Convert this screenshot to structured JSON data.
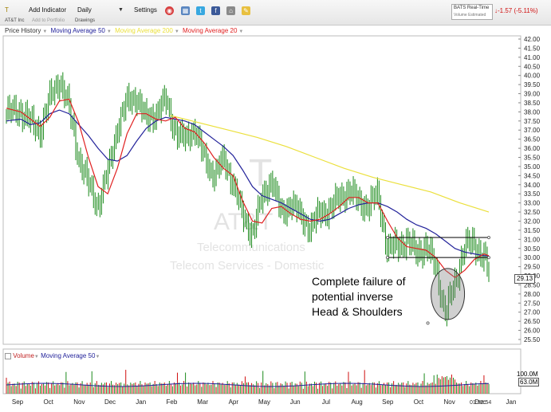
{
  "toolbar": {
    "symbol": "T",
    "add_indicator": "Add Indicator",
    "interval": "Daily",
    "settings": "Settings",
    "company": "AT&T Inc",
    "add_portfolio": "Add to Portfolio",
    "drawings": "Drawings",
    "realtime_label": "BATS Real-Time",
    "volume_estimated": "Volume Estimated",
    "change": "-1.57 (-5.11%)",
    "icons": [
      "alert-icon",
      "grid-icon",
      "twitter-icon",
      "facebook-icon",
      "home-icon",
      "pencil-icon"
    ]
  },
  "legend": {
    "price_history": "Price History",
    "ma50": "Moving Average 50",
    "ma200": "Moving Average 200",
    "ma20": "Moving Average 20"
  },
  "overlay": {
    "symbol": "T",
    "name": "AT&T",
    "sector": "Telecommunications",
    "industry": "Telecom Services - Domestic"
  },
  "annotation": {
    "line1": "Complete failure of",
    "line2": "potential inverse",
    "line3": "Head & Shoulders"
  },
  "current_price": "29.13",
  "volume": {
    "label": "Volume",
    "ma_label": "Moving Average 50",
    "axis_top": "100.0M",
    "axis_mid": "63.0M"
  },
  "clock": "01:52:54",
  "colors": {
    "ma50": "#22229a",
    "ma200": "#ebe03c",
    "ma20": "#e02020",
    "price": "#1b8a1b"
  },
  "chart_data": {
    "type": "candlestick",
    "ylim": [
      25.5,
      42.0
    ],
    "y_ticks": [
      "42.00",
      "41.50",
      "41.00",
      "40.50",
      "40.00",
      "39.50",
      "39.00",
      "38.50",
      "38.00",
      "37.50",
      "37.00",
      "36.50",
      "36.00",
      "35.50",
      "35.00",
      "34.50",
      "34.00",
      "33.50",
      "33.00",
      "32.50",
      "32.00",
      "31.50",
      "31.00",
      "30.50",
      "30.00",
      "29.50",
      "29.00",
      "28.50",
      "28.00",
      "27.50",
      "27.00",
      "26.50",
      "26.00",
      "25.50"
    ],
    "x_ticks": [
      "Sep",
      "Oct",
      "Nov",
      "Dec",
      "Jan",
      "Feb",
      "Mar",
      "Apr",
      "May",
      "Jun",
      "Jul",
      "Aug",
      "Sep",
      "Oct",
      "Nov",
      "Dec",
      "Jan"
    ],
    "price_path": [
      [
        0,
        37.9
      ],
      [
        3,
        38.1
      ],
      [
        5,
        37.4
      ],
      [
        7,
        37.0
      ],
      [
        9,
        38.7
      ],
      [
        11,
        39.8
      ],
      [
        13,
        38.2
      ],
      [
        15,
        35.5
      ],
      [
        17,
        34.0
      ],
      [
        19,
        32.9
      ],
      [
        21,
        34.6
      ],
      [
        23,
        37.2
      ],
      [
        25,
        38.5
      ],
      [
        27,
        38.9
      ],
      [
        29,
        37.5
      ],
      [
        31,
        38.0
      ],
      [
        33,
        38.6
      ],
      [
        35,
        37.0
      ],
      [
        37,
        36.4
      ],
      [
        39,
        37.2
      ],
      [
        41,
        35.4
      ],
      [
        43,
        34.6
      ],
      [
        45,
        35.3
      ],
      [
        47,
        34.2
      ],
      [
        49,
        32.2
      ],
      [
        51,
        31.4
      ],
      [
        53,
        33.2
      ],
      [
        55,
        34.4
      ],
      [
        57,
        32.3
      ],
      [
        59,
        33.1
      ],
      [
        61,
        32.2
      ],
      [
        63,
        31.7
      ],
      [
        65,
        32.4
      ],
      [
        67,
        32.7
      ],
      [
        69,
        33.2
      ],
      [
        71,
        33.8
      ],
      [
        73,
        33.0
      ],
      [
        75,
        32.9
      ],
      [
        77,
        33.4
      ],
      [
        79,
        30.5
      ],
      [
        81,
        30.6
      ],
      [
        83,
        31.0
      ],
      [
        85,
        30.2
      ],
      [
        87,
        30.7
      ],
      [
        89,
        29.4
      ],
      [
        91,
        27.0
      ],
      [
        93,
        28.5
      ],
      [
        95,
        30.8
      ],
      [
        97,
        30.6
      ],
      [
        99,
        30.2
      ],
      [
        100,
        29.13
      ]
    ],
    "ma20": [
      [
        0,
        38.2
      ],
      [
        3,
        38.0
      ],
      [
        5,
        37.6
      ],
      [
        7,
        37.2
      ],
      [
        9,
        37.7
      ],
      [
        11,
        38.6
      ],
      [
        13,
        38.7
      ],
      [
        15,
        37.4
      ],
      [
        17,
        35.5
      ],
      [
        19,
        33.9
      ],
      [
        21,
        33.5
      ],
      [
        23,
        34.9
      ],
      [
        25,
        36.8
      ],
      [
        27,
        37.9
      ],
      [
        29,
        37.9
      ],
      [
        31,
        37.6
      ],
      [
        33,
        37.5
      ],
      [
        35,
        37.7
      ],
      [
        37,
        37.1
      ],
      [
        39,
        36.9
      ],
      [
        41,
        36.3
      ],
      [
        43,
        35.5
      ],
      [
        45,
        34.9
      ],
      [
        47,
        34.5
      ],
      [
        49,
        33.1
      ],
      [
        51,
        32.0
      ],
      [
        53,
        31.9
      ],
      [
        55,
        32.7
      ],
      [
        57,
        32.8
      ],
      [
        59,
        32.4
      ],
      [
        61,
        32.1
      ],
      [
        63,
        32.0
      ],
      [
        65,
        32.1
      ],
      [
        67,
        32.4
      ],
      [
        69,
        32.8
      ],
      [
        71,
        33.3
      ],
      [
        73,
        33.3
      ],
      [
        75,
        33.0
      ],
      [
        77,
        33.0
      ],
      [
        79,
        32.0
      ],
      [
        81,
        31.1
      ],
      [
        83,
        30.6
      ],
      [
        85,
        30.5
      ],
      [
        87,
        30.4
      ],
      [
        89,
        30.0
      ],
      [
        91,
        29.3
      ],
      [
        93,
        28.9
      ],
      [
        95,
        29.3
      ],
      [
        97,
        29.9
      ],
      [
        99,
        30.2
      ],
      [
        100,
        30.1
      ]
    ],
    "ma50": [
      [
        0,
        37.5
      ],
      [
        3,
        37.6
      ],
      [
        5,
        37.3
      ],
      [
        7,
        37.4
      ],
      [
        9,
        37.9
      ],
      [
        11,
        38.1
      ],
      [
        13,
        37.9
      ],
      [
        15,
        37.3
      ],
      [
        17,
        36.7
      ],
      [
        19,
        36.0
      ],
      [
        21,
        35.4
      ],
      [
        23,
        35.3
      ],
      [
        25,
        35.6
      ],
      [
        27,
        36.4
      ],
      [
        29,
        37.1
      ],
      [
        31,
        37.5
      ],
      [
        33,
        37.7
      ],
      [
        35,
        37.6
      ],
      [
        37,
        37.5
      ],
      [
        39,
        37.3
      ],
      [
        41,
        36.9
      ],
      [
        43,
        36.5
      ],
      [
        45,
        36.1
      ],
      [
        47,
        35.6
      ],
      [
        49,
        34.8
      ],
      [
        51,
        33.9
      ],
      [
        53,
        33.4
      ],
      [
        55,
        33.2
      ],
      [
        57,
        33.0
      ],
      [
        59,
        32.7
      ],
      [
        61,
        32.4
      ],
      [
        63,
        32.1
      ],
      [
        65,
        32.0
      ],
      [
        67,
        32.1
      ],
      [
        69,
        32.4
      ],
      [
        71,
        32.7
      ],
      [
        73,
        32.9
      ],
      [
        75,
        33.0
      ],
      [
        77,
        33.0
      ],
      [
        79,
        32.8
      ],
      [
        81,
        32.5
      ],
      [
        83,
        32.1
      ],
      [
        85,
        31.8
      ],
      [
        87,
        31.6
      ],
      [
        89,
        31.3
      ],
      [
        91,
        30.9
      ],
      [
        93,
        30.5
      ],
      [
        95,
        30.3
      ],
      [
        97,
        30.2
      ],
      [
        99,
        30.1
      ],
      [
        100,
        30.1
      ]
    ],
    "ma200": [
      [
        34,
        37.8
      ],
      [
        40,
        37.4
      ],
      [
        46,
        37.0
      ],
      [
        52,
        36.6
      ],
      [
        58,
        36.1
      ],
      [
        64,
        35.5
      ],
      [
        70,
        34.9
      ],
      [
        76,
        34.4
      ],
      [
        82,
        34.0
      ],
      [
        88,
        33.6
      ],
      [
        94,
        33.0
      ],
      [
        100,
        32.5
      ]
    ],
    "annotations": [
      "Complete failure of potential inverse Head & Shoulders"
    ],
    "grid": false
  }
}
